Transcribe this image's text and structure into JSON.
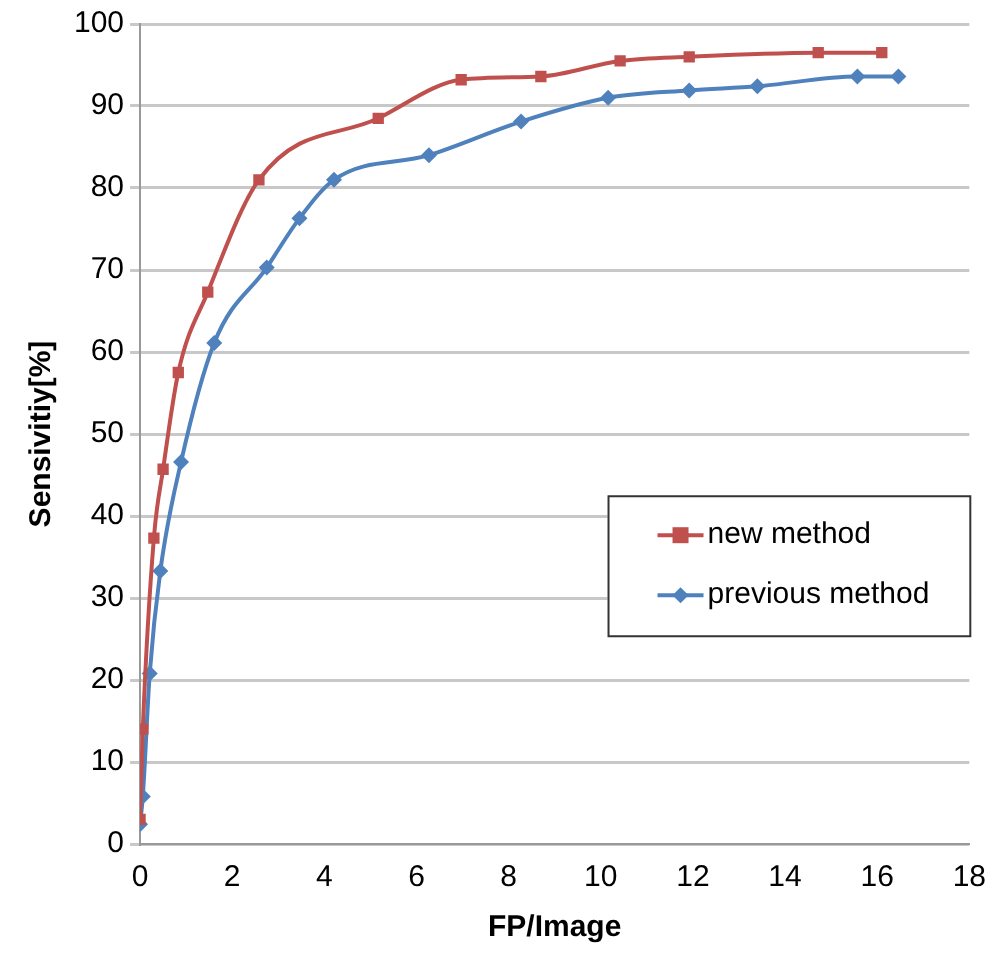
{
  "chart_data": {
    "type": "line",
    "xlabel": "FP/Image",
    "ylabel": "Sensivitiy[%]",
    "xlim": [
      0,
      18
    ],
    "xticks": [
      0,
      2,
      4,
      6,
      8,
      10,
      12,
      14,
      16,
      18
    ],
    "ylim": [
      0,
      100
    ],
    "yticks": [
      0,
      10,
      20,
      30,
      40,
      50,
      60,
      70,
      80,
      90,
      100
    ],
    "grid": "y",
    "legend": "right",
    "line_style": "solid",
    "series": [
      {
        "name": "new method",
        "color": "#c0504d",
        "marker": "square",
        "x": [
          0,
          0.06,
          0.3,
          0.5,
          0.83,
          1.47,
          2.58,
          5.17,
          6.97,
          8.7,
          10.42,
          11.92,
          14.72,
          16.1
        ],
        "values": [
          3,
          14,
          37.3,
          45.7,
          57.5,
          67.3,
          81,
          88.5,
          93.2,
          93.6,
          95.5,
          96,
          96.5,
          96.5
        ]
      },
      {
        "name": "previous method",
        "color": "#4f81bd",
        "marker": "diamond",
        "x": [
          0,
          0.06,
          0.21,
          0.44,
          0.89,
          1.61,
          2.75,
          3.46,
          4.21,
          6.27,
          8.27,
          10.16,
          11.92,
          13.4,
          15.57,
          16.46
        ],
        "values": [
          2.4,
          5.8,
          20.8,
          33.3,
          46.6,
          61.1,
          70.3,
          76.3,
          81,
          84,
          88.1,
          91,
          91.9,
          92.4,
          93.6,
          93.6
        ]
      }
    ]
  }
}
